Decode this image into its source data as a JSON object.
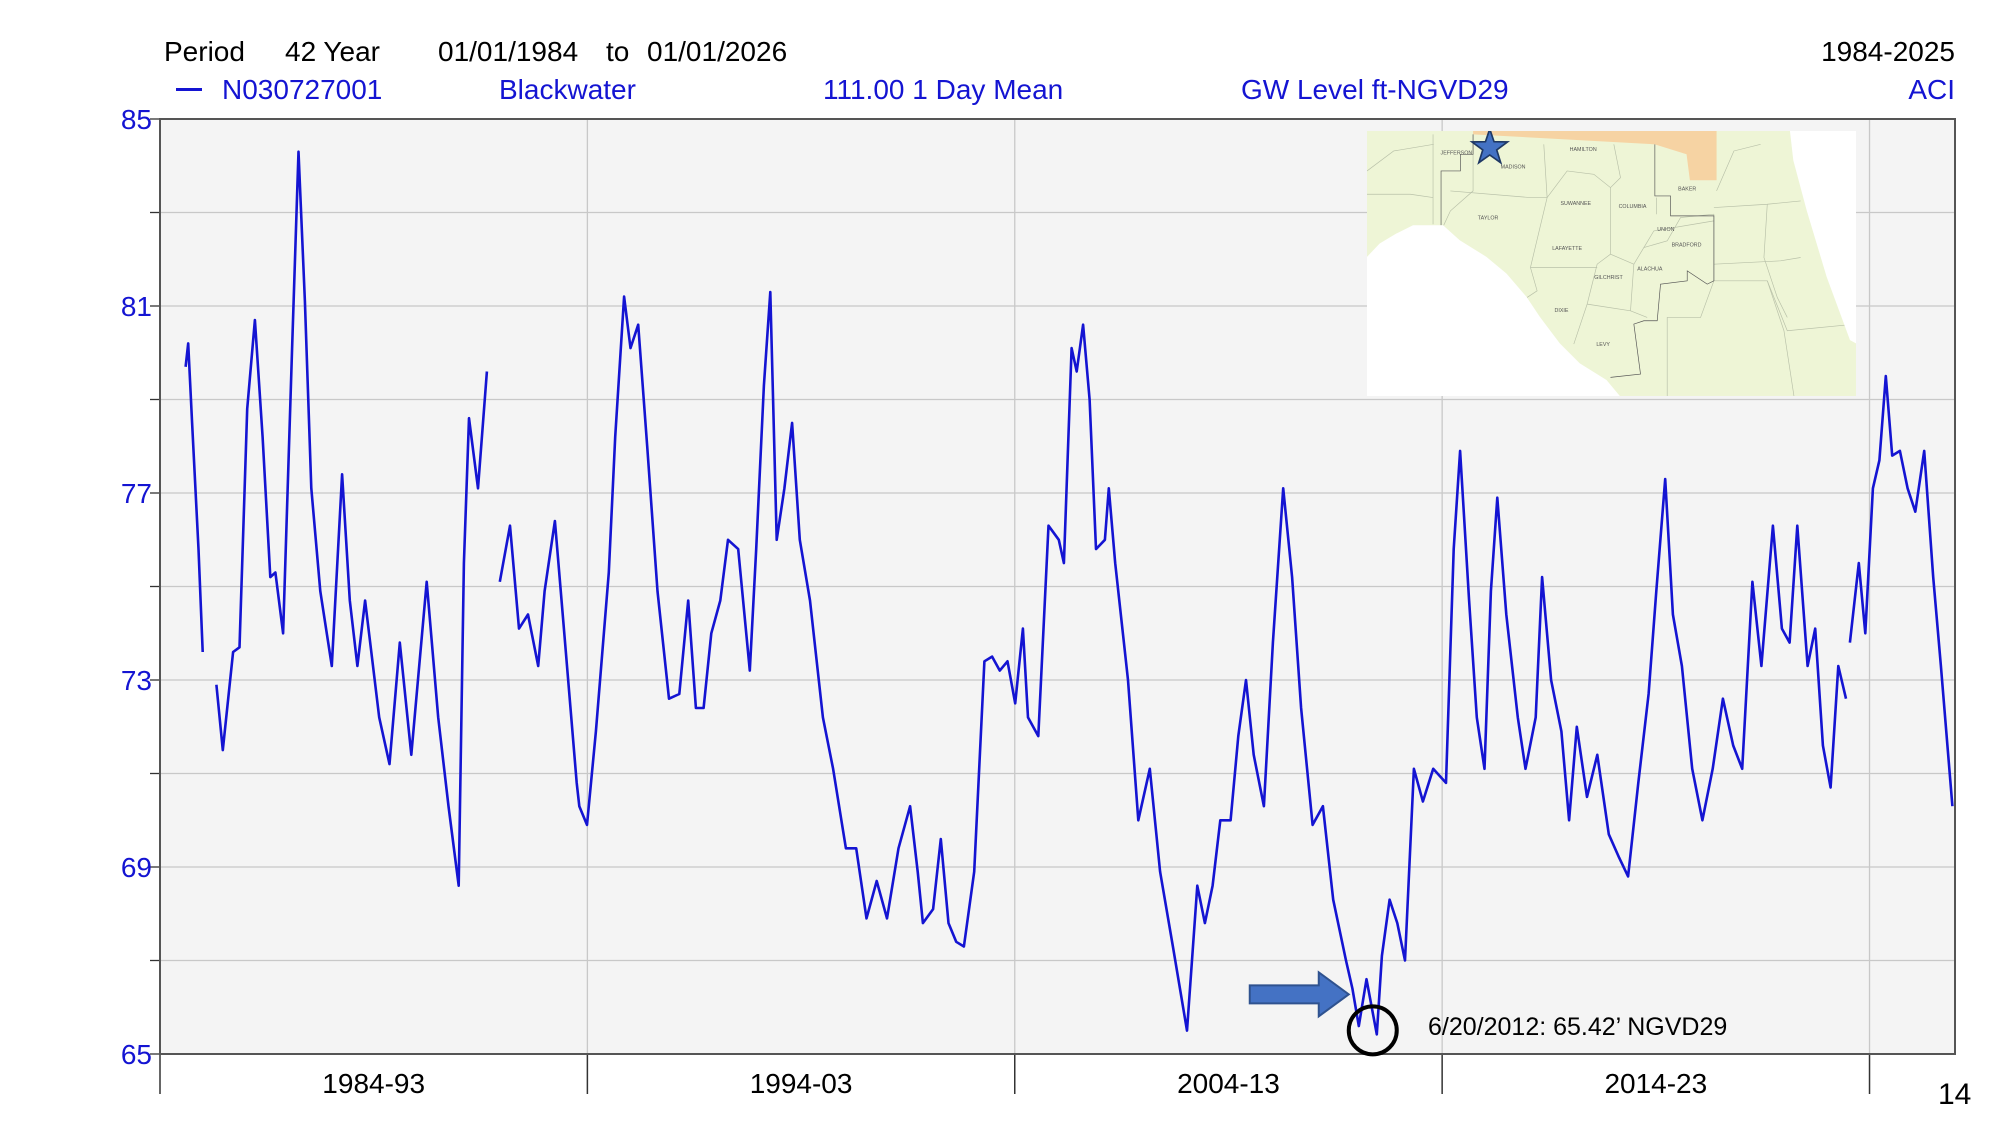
{
  "header": {
    "period_label": "Period",
    "period_value": "42 Year",
    "start_date": "01/01/1984",
    "to_label": "to",
    "end_date": "01/01/2026",
    "year_range": "1984-2025",
    "site_id": "N030727001",
    "site_name": "Blackwater",
    "statistic": "111.00 1 Day Mean",
    "parameter": "GW Level ft-NGVD29",
    "agency": "ACI"
  },
  "annotation": {
    "text": "6/20/2012: 65.42’ NGVD29",
    "arrow_color": "#4472c4",
    "circle_color": "#000000",
    "date_year": 2012.47,
    "value": 65.42
  },
  "page_number": "14",
  "map": {
    "marker": "star-icon",
    "marker_color": "#4472c4",
    "counties": [
      "JEFFERSON",
      "MADISON",
      "HAMILTON",
      "SUWANNEE",
      "COLUMBIA",
      "BAKER",
      "TAYLOR",
      "UNION",
      "BRADFORD",
      "LAFAYETTE",
      "ALACHUA",
      "GILCHRIST",
      "DIXIE",
      "LEVY"
    ]
  },
  "chart_data": {
    "type": "line",
    "title": "",
    "xlabel": "",
    "ylabel": "",
    "xlim": [
      1984,
      2026
    ],
    "ylim": [
      65,
      85
    ],
    "grid": true,
    "line_color": "#1414d2",
    "plot_background": "#f4f4f4",
    "x_tick_labels": [
      "1984-93",
      "1994-03",
      "2004-13",
      "2014-23"
    ],
    "x_dividers": [
      1994,
      2004,
      2014,
      2024
    ],
    "y_ticks": [
      65,
      69,
      73,
      77,
      81,
      85
    ],
    "y_minor_ticks": [
      67,
      71,
      75,
      79,
      83
    ],
    "series": [
      {
        "name": "N030727001",
        "points": [
          [
            1984.6,
            79.7
          ],
          [
            1984.66,
            80.2
          ],
          [
            1984.75,
            78.5
          ],
          [
            1984.9,
            75.8
          ],
          [
            1985.0,
            73.6
          ],
          null,
          [
            1985.32,
            72.9
          ],
          [
            1985.47,
            71.5
          ],
          [
            1985.71,
            73.6
          ],
          [
            1985.86,
            73.7
          ],
          [
            1986.04,
            78.8
          ],
          [
            1986.22,
            80.7
          ],
          [
            1986.4,
            78.2
          ],
          [
            1986.58,
            75.2
          ],
          [
            1986.7,
            75.3
          ],
          [
            1986.88,
            74.0
          ],
          [
            1987.09,
            80.1
          ],
          [
            1987.24,
            84.3
          ],
          [
            1987.39,
            81.1
          ],
          [
            1987.54,
            77.1
          ],
          [
            1987.75,
            74.9
          ],
          [
            1988.02,
            73.3
          ],
          [
            1988.26,
            77.4
          ],
          [
            1988.44,
            74.7
          ],
          [
            1988.62,
            73.3
          ],
          [
            1988.8,
            74.7
          ],
          [
            1989.13,
            72.2
          ],
          [
            1989.37,
            71.2
          ],
          [
            1989.61,
            73.8
          ],
          [
            1989.88,
            71.4
          ],
          [
            1990.24,
            75.1
          ],
          [
            1990.51,
            72.2
          ],
          [
            1990.75,
            70.3
          ],
          [
            1990.99,
            68.6
          ],
          [
            1991.11,
            75.5
          ],
          [
            1991.23,
            78.6
          ],
          [
            1991.44,
            77.1
          ],
          [
            1991.65,
            79.6
          ],
          null,
          [
            1991.95,
            75.1
          ],
          [
            1992.19,
            76.3
          ],
          [
            1992.4,
            74.1
          ],
          [
            1992.61,
            74.4
          ],
          [
            1992.85,
            73.3
          ],
          [
            1993.0,
            74.9
          ],
          [
            1993.24,
            76.4
          ],
          [
            1993.45,
            74.1
          ],
          [
            1993.75,
            70.8
          ],
          [
            1993.81,
            70.3
          ],
          [
            1993.99,
            69.9
          ],
          [
            1994.2,
            71.9
          ],
          [
            1994.5,
            75.3
          ],
          [
            1994.65,
            78.2
          ],
          [
            1994.86,
            81.2
          ],
          [
            1995.01,
            80.1
          ],
          [
            1995.19,
            80.6
          ],
          [
            1995.4,
            78.0
          ],
          [
            1995.64,
            74.9
          ],
          [
            1995.91,
            72.6
          ],
          [
            1996.15,
            72.7
          ],
          [
            1996.36,
            74.7
          ],
          [
            1996.54,
            72.4
          ],
          [
            1996.72,
            72.4
          ],
          [
            1996.9,
            74.0
          ],
          [
            1997.11,
            74.7
          ],
          [
            1997.29,
            76.0
          ],
          [
            1997.53,
            75.8
          ],
          [
            1997.8,
            73.2
          ],
          [
            1997.95,
            75.8
          ],
          [
            1998.13,
            79.3
          ],
          [
            1998.28,
            81.3
          ],
          [
            1998.43,
            76.0
          ],
          [
            1998.61,
            77.1
          ],
          [
            1998.79,
            78.5
          ],
          [
            1998.97,
            76.0
          ],
          [
            1999.21,
            74.7
          ],
          [
            1999.51,
            72.2
          ],
          [
            1999.75,
            71.1
          ],
          [
            2000.05,
            69.4
          ],
          [
            2000.29,
            69.4
          ],
          [
            2000.53,
            67.9
          ],
          [
            2000.77,
            68.7
          ],
          [
            2001.01,
            67.9
          ],
          [
            2001.28,
            69.4
          ],
          [
            2001.55,
            70.3
          ],
          [
            2001.73,
            68.9
          ],
          [
            2001.85,
            67.8
          ],
          [
            2002.09,
            68.1
          ],
          [
            2002.27,
            69.6
          ],
          [
            2002.45,
            67.8
          ],
          [
            2002.63,
            67.4
          ],
          [
            2002.81,
            67.3
          ],
          [
            2003.05,
            68.9
          ],
          [
            2003.29,
            73.4
          ],
          [
            2003.47,
            73.5
          ],
          [
            2003.65,
            73.2
          ],
          [
            2003.83,
            73.4
          ],
          [
            2004.01,
            72.5
          ],
          [
            2004.19,
            74.1
          ],
          [
            2004.31,
            72.2
          ],
          [
            2004.55,
            71.8
          ],
          [
            2004.79,
            76.3
          ],
          [
            2005.03,
            76.0
          ],
          [
            2005.15,
            75.5
          ],
          [
            2005.33,
            80.1
          ],
          [
            2005.45,
            79.6
          ],
          [
            2005.6,
            80.6
          ],
          [
            2005.75,
            79.0
          ],
          [
            2005.9,
            75.8
          ],
          [
            2006.11,
            76.0
          ],
          [
            2006.2,
            77.1
          ],
          [
            2006.35,
            75.5
          ],
          [
            2006.65,
            73.0
          ],
          [
            2006.89,
            70.0
          ],
          [
            2007.16,
            71.1
          ],
          [
            2007.4,
            68.9
          ],
          [
            2007.7,
            67.3
          ],
          [
            2008.03,
            65.5
          ],
          [
            2008.27,
            68.6
          ],
          [
            2008.45,
            67.8
          ],
          [
            2008.63,
            68.6
          ],
          [
            2008.81,
            70.0
          ],
          [
            2009.05,
            70.0
          ],
          [
            2009.23,
            71.8
          ],
          [
            2009.41,
            73.0
          ],
          [
            2009.59,
            71.4
          ],
          [
            2009.83,
            70.3
          ],
          [
            2010.04,
            73.8
          ],
          [
            2010.28,
            77.1
          ],
          [
            2010.49,
            75.2
          ],
          [
            2010.7,
            72.4
          ],
          [
            2010.97,
            69.9
          ],
          [
            2011.21,
            70.3
          ],
          [
            2011.45,
            68.3
          ],
          [
            2011.75,
            67.0
          ],
          [
            2011.9,
            66.4
          ],
          [
            2012.05,
            65.6
          ],
          [
            2012.23,
            66.6
          ],
          [
            2012.47,
            65.42
          ],
          [
            2012.59,
            67.1
          ],
          [
            2012.77,
            68.3
          ],
          [
            2012.95,
            67.8
          ],
          [
            2013.13,
            67.0
          ],
          [
            2013.34,
            71.1
          ],
          [
            2013.55,
            70.4
          ],
          [
            2013.79,
            71.1
          ],
          [
            2014.09,
            70.8
          ],
          [
            2014.27,
            75.8
          ],
          [
            2014.42,
            77.9
          ],
          [
            2014.63,
            74.7
          ],
          [
            2014.81,
            72.2
          ],
          [
            2014.99,
            71.1
          ],
          [
            2015.14,
            74.9
          ],
          [
            2015.29,
            76.9
          ],
          [
            2015.5,
            74.4
          ],
          [
            2015.77,
            72.2
          ],
          [
            2015.95,
            71.1
          ],
          [
            2016.19,
            72.2
          ],
          [
            2016.34,
            75.2
          ],
          [
            2016.55,
            73.0
          ],
          [
            2016.79,
            71.9
          ],
          [
            2016.97,
            70.0
          ],
          [
            2017.15,
            72.0
          ],
          [
            2017.39,
            70.5
          ],
          [
            2017.63,
            71.4
          ],
          [
            2017.9,
            69.7
          ],
          [
            2018.14,
            69.2
          ],
          [
            2018.35,
            68.8
          ],
          [
            2018.59,
            70.8
          ],
          [
            2018.83,
            72.7
          ],
          [
            2019.01,
            74.9
          ],
          [
            2019.22,
            77.3
          ],
          [
            2019.4,
            74.4
          ],
          [
            2019.61,
            73.3
          ],
          [
            2019.85,
            71.1
          ],
          [
            2020.09,
            70.0
          ],
          [
            2020.33,
            71.1
          ],
          [
            2020.57,
            72.6
          ],
          [
            2020.81,
            71.6
          ],
          [
            2021.02,
            71.1
          ],
          [
            2021.26,
            75.1
          ],
          [
            2021.47,
            73.3
          ],
          [
            2021.74,
            76.3
          ],
          [
            2021.95,
            74.1
          ],
          [
            2022.13,
            73.8
          ],
          [
            2022.31,
            76.3
          ],
          [
            2022.55,
            73.3
          ],
          [
            2022.73,
            74.1
          ],
          [
            2022.91,
            71.6
          ],
          [
            2023.09,
            70.7
          ],
          [
            2023.27,
            73.3
          ],
          [
            2023.45,
            72.6
          ],
          null,
          [
            2023.54,
            73.8
          ],
          [
            2023.75,
            75.5
          ],
          [
            2023.9,
            74.0
          ],
          [
            2024.08,
            77.1
          ],
          [
            2024.23,
            77.7
          ],
          [
            2024.38,
            79.5
          ],
          [
            2024.53,
            77.8
          ],
          [
            2024.71,
            77.9
          ],
          [
            2024.89,
            77.1
          ],
          [
            2025.07,
            76.6
          ],
          [
            2025.28,
            77.9
          ],
          [
            2025.49,
            75.2
          ],
          [
            2025.67,
            73.3
          ],
          [
            2025.94,
            70.3
          ]
        ]
      }
    ]
  }
}
